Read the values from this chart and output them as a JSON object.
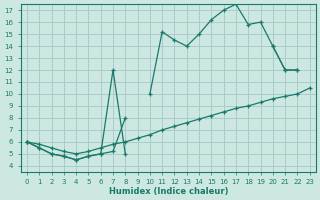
{
  "xlabel": "Humidex (Indice chaleur)",
  "bg_color": "#cce8e0",
  "grid_color": "#aacccc",
  "line_color": "#1a7a6a",
  "xlim": [
    -0.5,
    23.5
  ],
  "ylim": [
    3.5,
    17.5
  ],
  "x_ticks": [
    0,
    1,
    2,
    3,
    4,
    5,
    6,
    7,
    8,
    9,
    10,
    11,
    12,
    13,
    14,
    15,
    16,
    17,
    18,
    19,
    20,
    21,
    22,
    23
  ],
  "y_ticks": [
    4,
    5,
    6,
    7,
    8,
    9,
    10,
    11,
    12,
    13,
    14,
    15,
    16,
    17
  ],
  "series": [
    {
      "x": [
        0,
        1,
        2,
        3,
        4,
        5,
        6,
        7,
        8,
        9,
        10,
        11,
        12,
        13,
        14,
        15,
        16,
        17,
        18,
        19,
        20,
        21,
        22,
        23
      ],
      "y": [
        6,
        5.8,
        5.5,
        5.2,
        5.0,
        5.2,
        5.5,
        5.8,
        6.0,
        6.3,
        6.6,
        7.0,
        7.3,
        7.6,
        7.9,
        8.2,
        8.5,
        8.8,
        9.0,
        9.3,
        9.6,
        9.8,
        10.0,
        10.5
      ]
    },
    {
      "x": [
        0,
        1,
        2,
        3,
        4,
        5,
        6,
        7,
        8,
        9,
        10,
        11,
        12,
        13,
        14,
        15,
        16,
        17,
        18,
        19,
        20,
        21,
        22
      ],
      "y": [
        6,
        5.5,
        5.0,
        4.8,
        4.5,
        4.8,
        5.0,
        12,
        5.0,
        null,
        null,
        null,
        null,
        null,
        null,
        null,
        null,
        null,
        null,
        null,
        14,
        12,
        12
      ]
    },
    {
      "x": [
        0,
        1,
        2,
        3,
        4,
        5,
        6,
        7,
        8,
        9,
        10,
        11,
        12,
        13,
        14,
        15,
        16,
        17,
        18,
        19,
        20,
        21,
        22,
        23
      ],
      "y": [
        6,
        5.5,
        5.0,
        4.8,
        4.5,
        4.8,
        5.0,
        5.2,
        8,
        null,
        10,
        15.2,
        14.5,
        14.0,
        15.0,
        16.2,
        17.0,
        17.5,
        15.8,
        16.0,
        14.0,
        12.0,
        12.0,
        null
      ]
    }
  ]
}
